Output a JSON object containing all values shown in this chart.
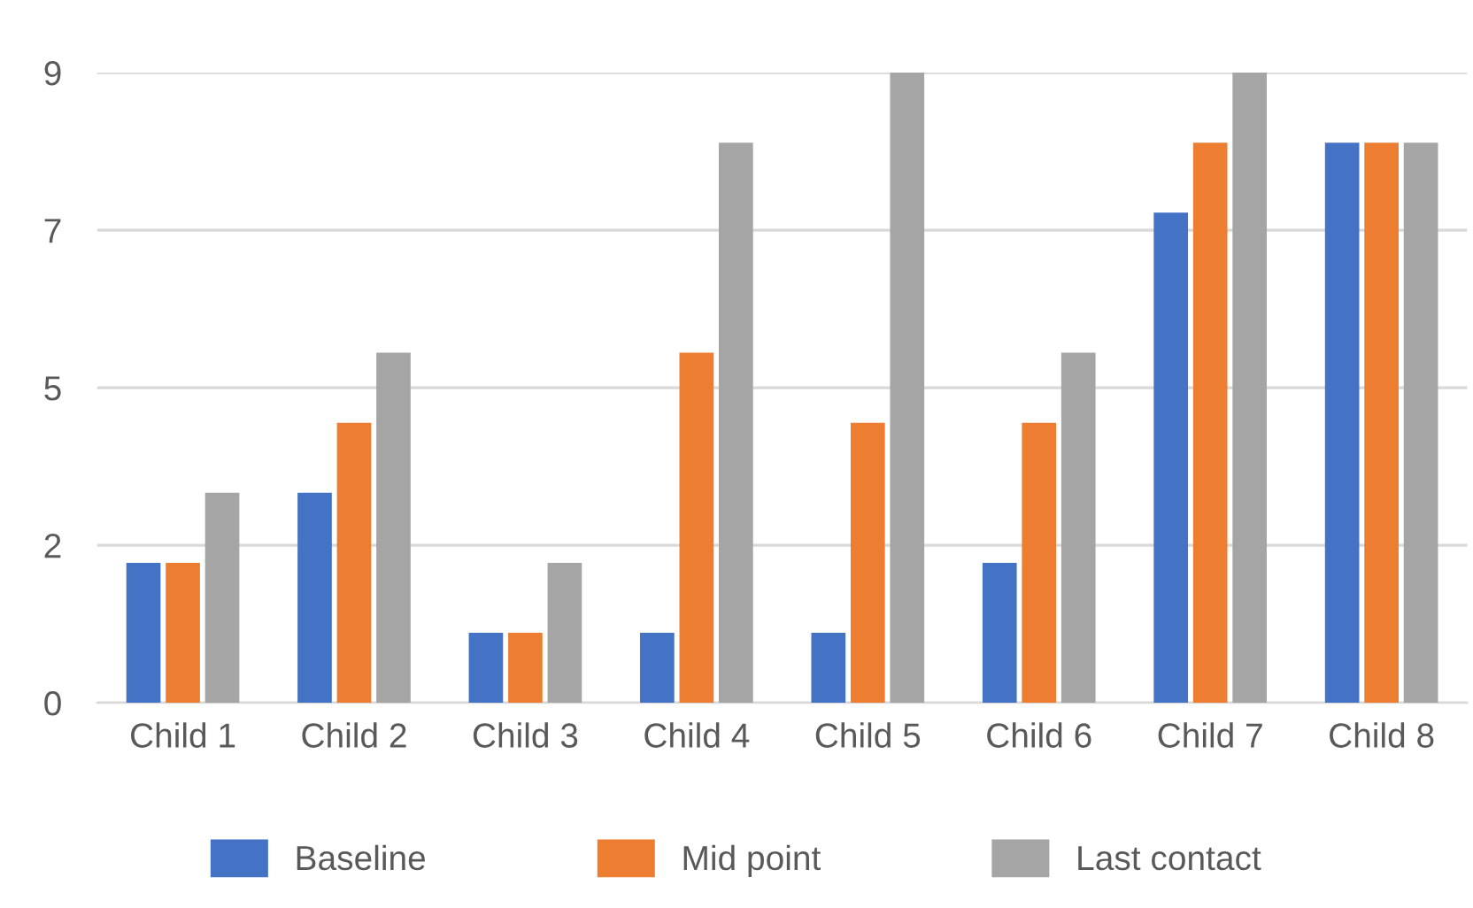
{
  "chart_data": {
    "type": "bar",
    "categories": [
      "Child 1",
      "Child 2",
      "Child 3",
      "Child 4",
      "Child 5",
      "Child 6",
      "Child 7",
      "Child 8"
    ],
    "series": [
      {
        "name": "Baseline",
        "color": "#4472c4",
        "values": [
          2,
          3,
          1,
          1,
          1,
          2,
          7,
          8
        ]
      },
      {
        "name": "Mid point",
        "color": "#ed7d31",
        "values": [
          2,
          4,
          1,
          5,
          4,
          4,
          8,
          8
        ]
      },
      {
        "name": "Last contact",
        "color": "#a5a5a5",
        "values": [
          3,
          5,
          2,
          8,
          9,
          5,
          9,
          8
        ]
      }
    ],
    "ylim": [
      0,
      9
    ],
    "yticks": [
      0,
      {
        "value": 2.25,
        "label": "2"
      },
      {
        "value": 4.5,
        "label": "5"
      },
      {
        "value": 6.75,
        "label": "7"
      },
      9
    ],
    "grid": "y",
    "legend": "bottom"
  }
}
